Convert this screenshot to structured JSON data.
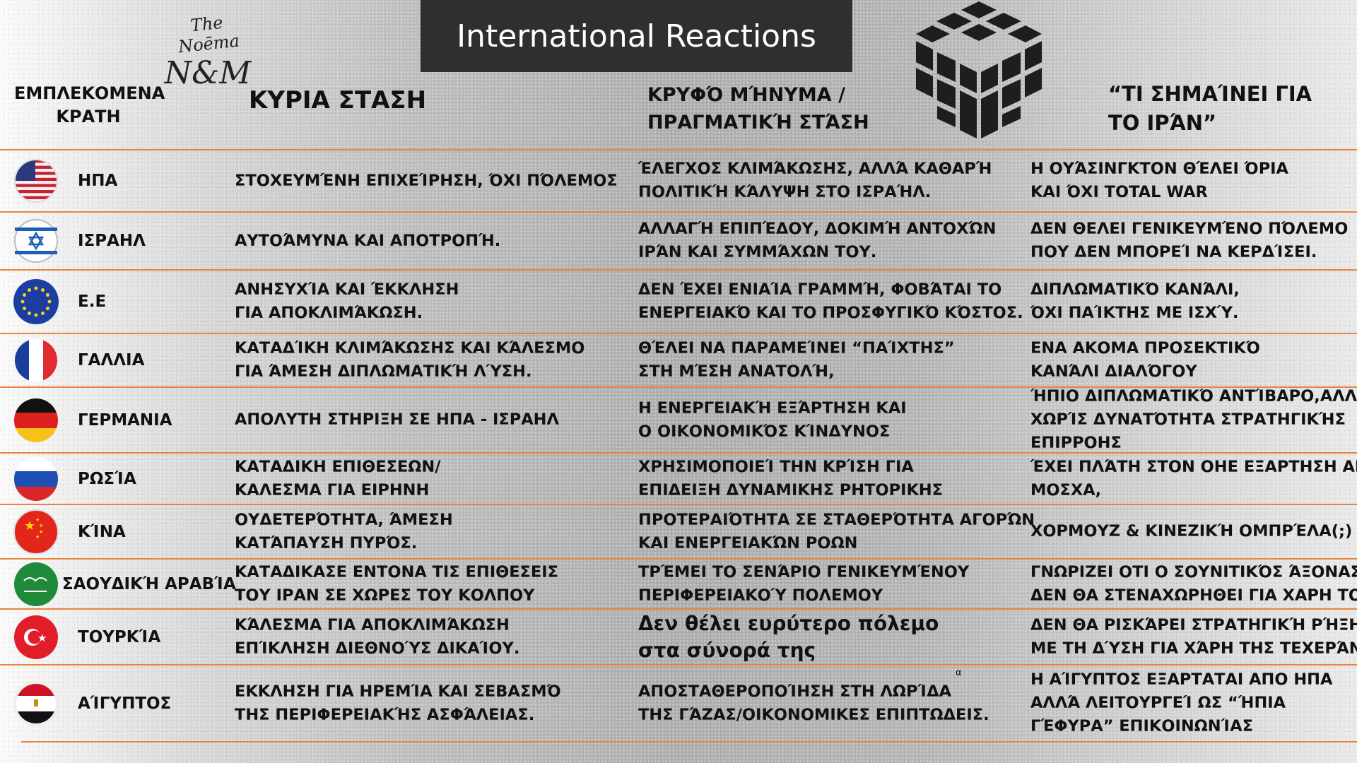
{
  "title": "International Reactions",
  "logo": {
    "line1": "The Noēma",
    "line2": "N&M"
  },
  "headers": {
    "countries": [
      "ΕΜΠΛΕΚΟΜΕΝΑ",
      "ΚΡΑΤΗ"
    ],
    "main_stance": "ΚΥΡΙΑ ΣΤΑΣΗ",
    "hidden_message": [
      "ΚΡΥΦΌ ΜΉΝΥΜΑ /",
      "ΠΡΑΓΜΑΤΙΚΉ ΣΤΆΣΗ"
    ],
    "meaning_for_iran": [
      "“ΤΙ ΣΗΜΑΊΝΕΙ ΓΙΑ",
      "ΤΟ ΙΡΆΝ”"
    ]
  },
  "accent_color": "#e8843f",
  "rows": [
    {
      "country": "ΗΠΑ",
      "flag": "usa-flag",
      "main": [
        "ΣΤΟΧΕΥΜΈΝΗ ΕΠΙΧΕΊΡΗΣΗ, ΌΧΙ ΠΌΛΕΜΟΣ"
      ],
      "hidden": [
        "ΈΛΕΓΧΟΣ ΚΛΙΜΆΚΩΣΗΣ, ΑΛΛΆ ΚΑΘΑΡΉ",
        "ΠΟΛΙΤΙΚΉ ΚΆΛΥΨΗ ΣΤΟ ΙΣΡΑΉΛ."
      ],
      "meaning": [
        "Η ΟΥΆΣΙΝΓΚΤΟΝ  ΘΈΛΕΙ ΌΡΙΑ",
        "ΚΑΙ ΌΧΙ TOTAL WAR"
      ]
    },
    {
      "country": "ΙΣΡΑΗΛ",
      "flag": "israel-flag",
      "main": [
        "ΑΥΤΟΆΜΥΝΑ ΚΑΙ ΑΠΟΤΡΟΠΉ."
      ],
      "hidden": [
        "ΑΛΛΑΓΉ ΕΠΙΠΈΔΟΥ, ΔΟΚΙΜΉ ΑΝΤΟΧΏΝ",
        "ΙΡΆΝ ΚΑΙ ΣΥΜΜΆΧΩΝ ΤΟΥ."
      ],
      "meaning": [
        "ΔΕΝ ΘΕΛΕΙ ΓΕΝΙΚΕΥΜΈΝΟ ΠΌΛΕΜΟ",
        "ΠΟΥ ΔΕΝ ΜΠΟΡΕΊ ΝΑ ΚΕΡΔΊΣΕΙ."
      ]
    },
    {
      "country": "Ε.Ε",
      "flag": "eu-flag",
      "main": [
        "ΑΝΗΣΥΧΊΑ ΚΑΙ ΈΚΚΛΗΣΗ",
        "ΓΙΑ ΑΠΟΚΛΙΜΆΚΩΣΗ."
      ],
      "hidden": [
        "ΔΕΝ ΈΧΕΙ ΕΝΙΑΊΑ ΓΡΑΜΜΉ, ΦΟΒΆΤΑΙ ΤΟ",
        "ΕΝΕΡΓΕΙΑΚΌ ΚΑΙ ΤΟ ΠΡΟΣΦΥΓΙΚΌ ΚΌΣΤΟΣ."
      ],
      "meaning": [
        "ΔΙΠΛΩΜΑΤΙΚΌ ΚΑΝΆΛΙ,",
        "ΌΧΙ ΠΑΊΚΤΗΣ ΜΕ ΙΣΧΎ."
      ]
    },
    {
      "country": "ΓΑΛΛΙΑ",
      "flag": "france-flag",
      "main": [
        "ΚΑΤΑΔΊΚΗ ΚΛΙΜΆΚΩΣΗΣ ΚΑΙ ΚΆΛΕΣΜΟ",
        "ΓΙΑ ΆΜΕΣΗ ΔΙΠΛΩΜΑΤΙΚΉ ΛΎΣΗ."
      ],
      "hidden": [
        "ΘΈΛΕΙ ΝΑ ΠΑΡΑΜΕΊΝΕΙ “ΠΑΊΧΤΗΣ”",
        "ΣΤΗ ΜΈΣΗ ΑΝΑΤΟΛΉ,"
      ],
      "meaning": [
        "ΕΝΑ ΑΚΟΜΑ ΠΡΟΣΕΚΤΙΚΌ",
        "ΚΑΝΆΛΙ ΔΙΑΛΌΓΟΥ"
      ]
    },
    {
      "country": "ΓΕΡΜΑΝΙΑ",
      "flag": "germany-flag",
      "main": [
        "ΑΠΟΛΥΤΗ ΣΤΗΡΙΞΗ ΣΕ ΗΠΑ - ΙΣΡΑΗΛ"
      ],
      "hidden": [
        "Η ΕΝΕΡΓΕΙΑΚΉ ΕΞΆΡΤΗΣΗ ΚΑΙ",
        "Ο ΟΙΚΟΝΟΜΙΚΌΣ ΚΊΝΔΥΝΟΣ"
      ],
      "meaning": [
        "ΉΠΙΟ ΔΙΠΛΩΜΑΤΙΚΌ ΑΝΤΊΒΑΡΟ,ΑΛΛΆ",
        "ΧΩΡΊΣ ΔΥΝΑΤΌΤΗΤΑ  ΣΤΡΑΤΗΓΙΚΉΣ",
        "ΕΠΙΡΡΟΗΣ"
      ]
    },
    {
      "country": "ΡΩΣΊΑ",
      "flag": "russia-flag",
      "main": [
        "ΚΑΤΑΔΙΚΗ ΕΠΙΘΕΣΕΩΝ/",
        "ΚΑΛΕΣΜΑ ΓΙΑ ΕΙΡΗΝΗ"
      ],
      "hidden": [
        "ΧΡΗΣΙΜΟΠΟΙΕΊ ΤΗΝ ΚΡΊΣΗ ΓΙΑ",
        "ΕΠΙΔΕΙΞΗ ΔΥΝΑΜΙΚΗΣ ΡΗΤΟΡΙΚΗΣ"
      ],
      "meaning": [
        "ΈΧΕΙ ΠΛΆΤΗ ΣΤΟΝ ΟΗΕ ΕΞΑΡΤΗΣΗ ΑΠΟ",
        "ΜΟΣΧΑ,"
      ]
    },
    {
      "country": "ΚΊΝΑ",
      "flag": "china-flag",
      "main": [
        "ΟΥΔΕΤΕΡΌΤΗΤΑ, ΆΜΕΣΗ",
        "ΚΑΤΆΠΑΥΣΗ ΠΥΡΌΣ."
      ],
      "hidden": [
        "ΠΡΟΤΕΡΑΙΌΤΗΤΑ ΣΕ ΣΤΑΘΕΡΌΤΗΤΑ  ΑΓΟΡΏΝ",
        "ΚΑΙ  ΕΝΕΡΓΕΙΑΚΏΝ ΡΟΩΝ"
      ],
      "meaning": [
        "ΧΟΡΜΟΥΖ & ΚΙΝΕΖΙΚΉ ΟΜΠΡΈΛΑ(;)"
      ]
    },
    {
      "country": "ΣΑΟΥΔΙΚΉ ΑΡΑΒΊΑ",
      "flag": "saudi-arabia-flag",
      "main": [
        "ΚΑΤΑΔΙΚΑΣΕ ΕΝΤΟΝΑ ΤΙΣ ΕΠΙΘΕΣΕΙΣ",
        "ΤΟΥ ΙΡΑΝ ΣΕ ΧΩΡΕΣ ΤΟΥ ΚΟΛΠΟΥ"
      ],
      "hidden": [
        "ΤΡΈΜΕΙ ΤΟ ΣΕΝΆΡΙΟ ΓΕΝΙΚΕΥΜΈΝΟΥ",
        "ΠΕΡΙΦΕΡΕΙΑΚΟΎ ΠΟΛΕΜΟΥ"
      ],
      "meaning": [
        "ΓΝΩΡΙΖΕΙ ΟΤΙ Ο ΣΟΥΝΙΤΙΚΌΣ ΆΞΟΝΑΣ",
        "ΔΕΝ ΘΑ ΣΤΕΝΑΧΩΡΗΘΕΙ ΓΙΑ ΧΑΡΗ ΤΟΥ"
      ]
    },
    {
      "country": "ΤΟΥΡΚΊΑ",
      "flag": "turkey-flag",
      "main": [
        "ΚΆΛΕΣΜΑ ΓΙΑ ΑΠΟΚΛΙΜΆΚΩΣΗ",
        "ΕΠΊΚΛΗΣΗ ΔΙΕΘΝΟΎΣ ΔΙΚΑΊΟΥ."
      ],
      "hidden": [
        "Δεν θέλει ευρύτερο πόλεμο",
        "στα σύνορά της"
      ],
      "meaning": [
        "ΔΕΝ ΘΑ ΡΙΣΚΆΡΕΙ ΣΤΡΑΤΗΓΙΚΉ ΡΉΞΗ",
        "ΜΕ ΤΗ ΔΎΣΗ ΓΙΑ ΧΆΡΗ ΤΗΣ ΤΕΧΕΡΆΝΗΣ"
      ]
    },
    {
      "country": "ΑΊΓΥΠΤΟΣ",
      "flag": "egypt-flag",
      "main": [
        "ΕΚΚΛΗΣΗ ΓΙΑ ΗΡΕΜΊΑ ΚΑΙ ΣΕΒΑΣΜΌ",
        "ΤΗΣ ΠΕΡΙΦΕΡΕΙΑΚΉΣ ΑΣΦΆΛΕΙΑΣ."
      ],
      "hidden": [
        "ΑΠΟΣΤΑΘΕΡΟΠΟΊΗΣΗ ΣΤΗ ΛΩΡΊΔΑ",
        "ΤΗΣ ΓΆΖΑΣ/ΟΙΚΟΝΟΜΙΚΕΣ ΕΠΙΠΤΩΔΕΙΣ."
      ],
      "meaning": [
        "Η ΑΊΓΥΠΤΟΣ ΕΞΑΡΤΑΤΑΙ ΑΠΟ ΗΠΑ",
        "ΑΛΛΆ ΛΕΙΤΟΥΡΓΕΊ ΩΣ “ΉΠΙΑ",
        "ΓΈΦΥΡΑ” ΕΠΙΚΟΙΝΩΝΊΑΣ"
      ]
    }
  ],
  "stray_note": "α"
}
